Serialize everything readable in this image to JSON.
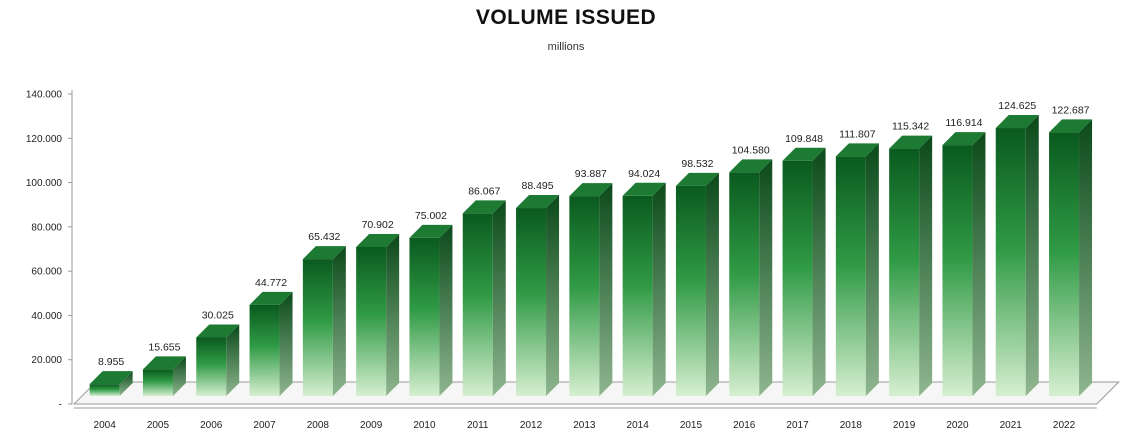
{
  "chart_data": {
    "type": "bar",
    "title": "VOLUME ISSUED",
    "subtitle": "millions",
    "xlabel": "",
    "ylabel": "",
    "categories": [
      "2004",
      "2005",
      "2006",
      "2007",
      "2008",
      "2009",
      "2010",
      "2011",
      "2012",
      "2013",
      "2014",
      "2015",
      "2016",
      "2017",
      "2018",
      "2019",
      "2020",
      "2021",
      "2022"
    ],
    "values": [
      8955,
      15655,
      30025,
      44772,
      65432,
      70902,
      75002,
      86067,
      88495,
      93887,
      94024,
      98532,
      104580,
      109848,
      111807,
      115342,
      116914,
      124625,
      122687
    ],
    "data_labels": [
      "8.955",
      "15.655",
      "30.025",
      "44.772",
      "65.432",
      "70.902",
      "75.002",
      "86.067",
      "88.495",
      "93.887",
      "94.024",
      "98.532",
      "104.580",
      "109.848",
      "111.807",
      "115.342",
      "116.914",
      "124.625",
      "122.687"
    ],
    "y_ticks": [
      0,
      20000,
      40000,
      60000,
      80000,
      100000,
      120000,
      140000
    ],
    "y_tick_labels": [
      "-",
      "20.000",
      "40.000",
      "60.000",
      "80.000",
      "100.000",
      "120.000",
      "140.000"
    ],
    "ylim": [
      0,
      140000
    ],
    "grid": false,
    "legend": "none",
    "style": "3d-bar",
    "colors": {
      "bar_top": "#0a5a1e",
      "bar_mid": "#2f9a45",
      "bar_bottom": "#d6efd0",
      "side_dark": "#0b4a1a",
      "side_light": "#8fb68f",
      "floor_edge": "#9a9a9a"
    }
  }
}
